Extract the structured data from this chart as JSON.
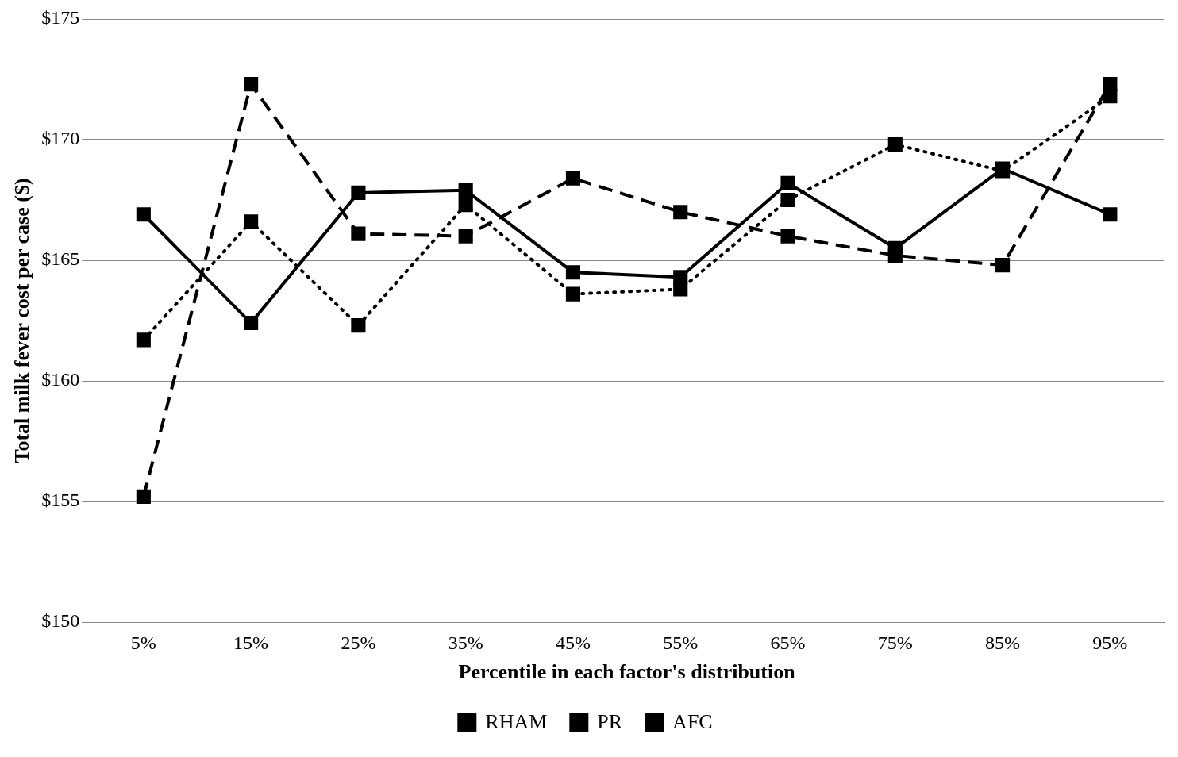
{
  "chart_data": {
    "type": "line",
    "xlabel": "Percentile in each factor's distribution",
    "ylabel": "Total milk fever cost per case ($)",
    "categories": [
      "5%",
      "15%",
      "25%",
      "35%",
      "45%",
      "55%",
      "65%",
      "75%",
      "85%",
      "95%"
    ],
    "series": [
      {
        "name": "RHAM",
        "color": "#000000",
        "line_style": "dotted",
        "values": [
          161.7,
          166.6,
          162.3,
          167.3,
          163.6,
          163.8,
          167.5,
          169.8,
          168.7,
          171.8
        ]
      },
      {
        "name": "PR",
        "color": "#000000",
        "line_style": "dashed",
        "values": [
          155.2,
          172.3,
          166.1,
          166.0,
          168.4,
          167.0,
          166.0,
          165.2,
          164.8,
          172.3
        ]
      },
      {
        "name": "AFC",
        "color": "#000000",
        "line_style": "solid",
        "values": [
          166.9,
          162.4,
          167.8,
          167.9,
          164.5,
          164.3,
          168.2,
          165.5,
          168.8,
          166.9
        ]
      }
    ],
    "ylim": [
      150,
      175
    ],
    "yticks": [
      {
        "value": 150,
        "label": "$150"
      },
      {
        "value": 155,
        "label": "$155"
      },
      {
        "value": 160,
        "label": "$160"
      },
      {
        "value": 165,
        "label": "$165"
      },
      {
        "value": 170,
        "label": "$170"
      },
      {
        "value": 175,
        "label": "$175"
      }
    ],
    "grid": "y",
    "legend": "bottom",
    "marker": "square"
  }
}
